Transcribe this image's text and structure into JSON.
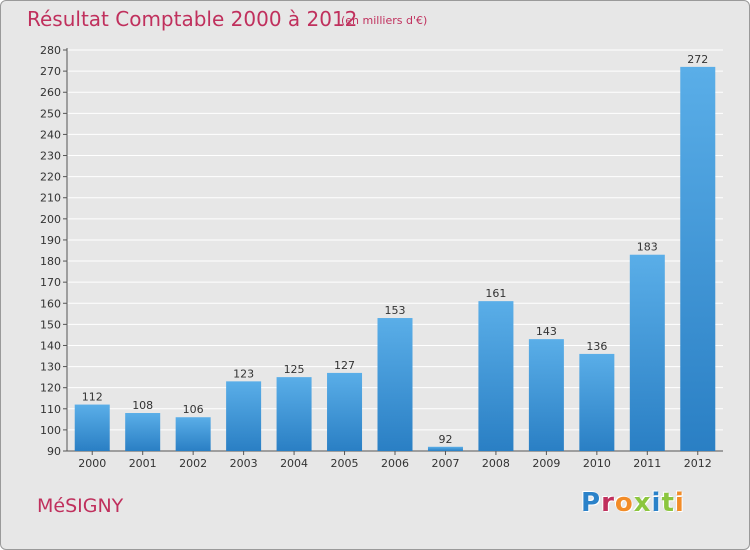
{
  "header": {
    "title": "Résultat Comptable 2000 à 2012",
    "subtitle": "(en milliers d'€)"
  },
  "footer": {
    "commune": "MéSIGNY",
    "logo_text": "Proxiti"
  },
  "colors": {
    "accent": "#c0305d",
    "bar_top": "#5aaee8",
    "bar_bottom": "#2a7fc4",
    "background": "#e7e7e7",
    "logo_letters": [
      "#2b82c9",
      "#c0305d",
      "#f28c28",
      "#8cc63f",
      "#2b82c9",
      "#8cc63f",
      "#f28c28"
    ]
  },
  "chart_data": {
    "type": "bar",
    "title": "Résultat Comptable 2000 à 2012",
    "xlabel": "",
    "ylabel": "",
    "categories": [
      "2000",
      "2001",
      "2002",
      "2003",
      "2004",
      "2005",
      "2006",
      "2007",
      "2008",
      "2009",
      "2010",
      "2011",
      "2012"
    ],
    "values": [
      112,
      108,
      106,
      123,
      125,
      127,
      153,
      92,
      161,
      143,
      136,
      183,
      272
    ],
    "ylim": [
      90,
      280
    ],
    "ytick_step": 10,
    "grid": true
  }
}
